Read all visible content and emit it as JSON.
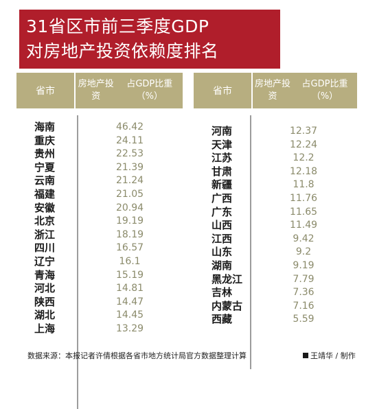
{
  "title": {
    "line1": "31省区市前三季度GDP",
    "line2": "对房地产投资依赖度排名"
  },
  "table_headers": {
    "region": "省市",
    "value_line1": "房地产投资",
    "value_line2": "占GDP比重（%）"
  },
  "footer": {
    "source": "数据来源：本报记者许倩根据各省市地方统计局官方数据整理计算",
    "credit": "王靖华 / 制作"
  },
  "colors": {
    "title_bg": "#b01e2b",
    "header_bg": "#b7ae80",
    "value_text": "#8a8a6a"
  },
  "chart_data": {
    "type": "table",
    "title": "31省区市前三季度GDP对房地产投资依赖度排名",
    "columns": [
      "省市",
      "房地产投资占GDP比重（%）"
    ],
    "left": [
      {
        "name": "海南",
        "value": "46.42"
      },
      {
        "name": "重庆",
        "value": "24.11"
      },
      {
        "name": "贵州",
        "value": "22.53"
      },
      {
        "name": "宁夏",
        "value": "21.39"
      },
      {
        "name": "云南",
        "value": "21.24"
      },
      {
        "name": "福建",
        "value": "21.05"
      },
      {
        "name": "安徽",
        "value": "20.94"
      },
      {
        "name": "北京",
        "value": "19.19"
      },
      {
        "name": "浙江",
        "value": "18.19"
      },
      {
        "name": "四川",
        "value": "16.57"
      },
      {
        "name": "辽宁",
        "value": "16.1"
      },
      {
        "name": "青海",
        "value": "15.19"
      },
      {
        "name": "河北",
        "value": "14.81"
      },
      {
        "name": "陕西",
        "value": "14.47"
      },
      {
        "name": "湖北",
        "value": "14.45"
      },
      {
        "name": "上海",
        "value": "13.29"
      }
    ],
    "right": [
      {
        "name": "河南",
        "value": "12.37"
      },
      {
        "name": "天津",
        "value": "12.24"
      },
      {
        "name": "江苏",
        "value": "12.2"
      },
      {
        "name": "甘肃",
        "value": "12.18"
      },
      {
        "name": "新疆",
        "value": "11.8"
      },
      {
        "name": "广西",
        "value": "11.76"
      },
      {
        "name": "广东",
        "value": "11.65"
      },
      {
        "name": "山西",
        "value": "11.49"
      },
      {
        "name": "江西",
        "value": "9.42"
      },
      {
        "name": "山东",
        "value": "9.2"
      },
      {
        "name": "湖南",
        "value": "9.19"
      },
      {
        "name": "黑龙江",
        "value": "7.79"
      },
      {
        "name": "吉林",
        "value": "7.36"
      },
      {
        "name": "内蒙古",
        "value": "7.16"
      },
      {
        "name": "西藏",
        "value": "5.59"
      }
    ]
  }
}
